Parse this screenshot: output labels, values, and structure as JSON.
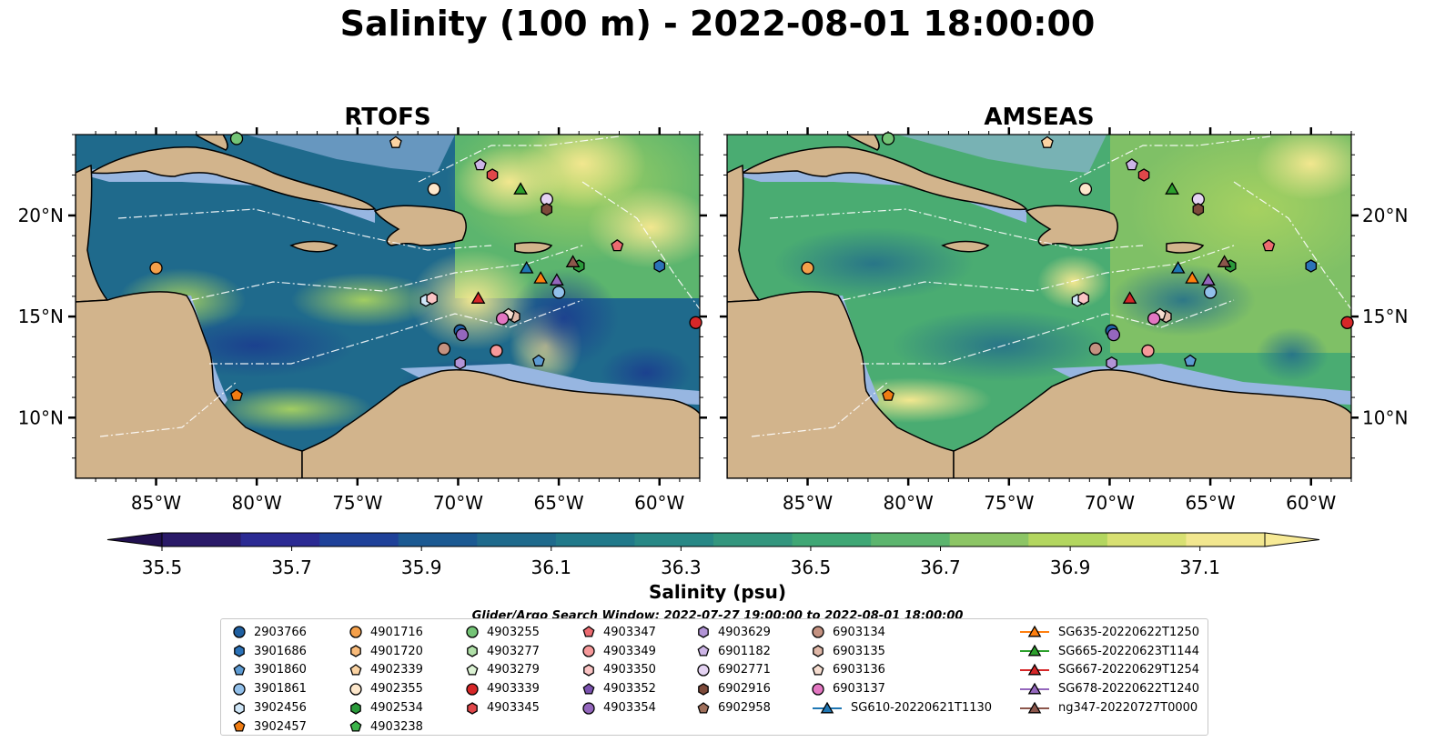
{
  "title": "Salinity (100 m) - 2022-08-01 18:00:00",
  "panels": [
    {
      "title": "RTOFS"
    },
    {
      "title": "AMSEAS"
    }
  ],
  "axes": {
    "x_ticks": [
      "85°W",
      "80°W",
      "75°W",
      "70°W",
      "65°W",
      "60°W"
    ],
    "y_ticks": [
      "20°N",
      "15°N",
      "10°N"
    ],
    "x_range_deg": [
      -89,
      -58
    ],
    "y_range_deg": [
      7,
      24
    ]
  },
  "colorbar": {
    "label": "Salinity (psu)",
    "tick_labels": [
      "35.5",
      "35.7",
      "35.9",
      "36.1",
      "36.3",
      "36.5",
      "36.7",
      "36.9",
      "37.1"
    ],
    "range": [
      35.5,
      37.2
    ],
    "extend": "both",
    "colors": [
      "#2a1a68",
      "#2b2a93",
      "#1f4199",
      "#1b5992",
      "#1f6a8c",
      "#21798a",
      "#288886",
      "#33967e",
      "#3fa775",
      "#5cb56e",
      "#8cc565",
      "#b3d65f",
      "#d8e072",
      "#f2e78f"
    ]
  },
  "search_window": "Glider/Argo Search Window: 2022-07-27 19:00:00 to 2022-08-01 18:00:00",
  "colors": {
    "land": "#d2b48c",
    "shelf": "#97b6e1"
  },
  "legend": {
    "columns": [
      [
        {
          "label": "2903766",
          "marker": "circle",
          "color": "#1f5fa0"
        },
        {
          "label": "3901686",
          "marker": "hexagon",
          "color": "#2b72b8"
        },
        {
          "label": "3901860",
          "marker": "pentagon",
          "color": "#5d9bd3"
        },
        {
          "label": "3901861",
          "marker": "circle",
          "color": "#92c0ea"
        },
        {
          "label": "3902456",
          "marker": "hexagon",
          "color": "#cfe6f7"
        },
        {
          "label": "3902457",
          "marker": "pentagon",
          "color": "#f07c12"
        }
      ],
      [
        {
          "label": "4901716",
          "marker": "circle",
          "color": "#f5a04a"
        },
        {
          "label": "4901720",
          "marker": "hexagon",
          "color": "#f9bb7a"
        },
        {
          "label": "4902339",
          "marker": "pentagon",
          "color": "#fbd3a2"
        },
        {
          "label": "4902355",
          "marker": "circle",
          "color": "#fde7cb"
        },
        {
          "label": "4902534",
          "marker": "hexagon",
          "color": "#2a9a3a"
        },
        {
          "label": "4903238",
          "marker": "pentagon",
          "color": "#3cb34a"
        }
      ],
      [
        {
          "label": "4903255",
          "marker": "circle",
          "color": "#74c476"
        },
        {
          "label": "4903277",
          "marker": "hexagon",
          "color": "#b0e0a8"
        },
        {
          "label": "4903279",
          "marker": "pentagon",
          "color": "#dcf3d4"
        },
        {
          "label": "4903339",
          "marker": "circle",
          "color": "#d62728"
        },
        {
          "label": "4903345",
          "marker": "hexagon",
          "color": "#e0474a"
        }
      ],
      [
        {
          "label": "4903347",
          "marker": "pentagon",
          "color": "#ec6b70"
        },
        {
          "label": "4903349",
          "marker": "circle",
          "color": "#f6999a"
        },
        {
          "label": "4903350",
          "marker": "hexagon",
          "color": "#fbc4c4"
        },
        {
          "label": "4903352",
          "marker": "pentagon",
          "color": "#7b52b0"
        },
        {
          "label": "4903354",
          "marker": "circle",
          "color": "#9467bd"
        }
      ],
      [
        {
          "label": "4903629",
          "marker": "hexagon",
          "color": "#b294d6"
        },
        {
          "label": "6901182",
          "marker": "pentagon",
          "color": "#cdb5e6"
        },
        {
          "label": "6902771",
          "marker": "circle",
          "color": "#e4d3f2"
        },
        {
          "label": "6902916",
          "marker": "hexagon",
          "color": "#7d4a3a"
        },
        {
          "label": "6902958",
          "marker": "pentagon",
          "color": "#a0705c"
        }
      ],
      [
        {
          "label": "6903134",
          "marker": "circle",
          "color": "#c49281"
        },
        {
          "label": "6903135",
          "marker": "hexagon",
          "color": "#e0b8a8"
        },
        {
          "label": "6903136",
          "marker": "pentagon",
          "color": "#f6ddd0"
        },
        {
          "label": "6903137",
          "marker": "circle",
          "color": "#e377c2"
        },
        {
          "label": "SG610-20220621T1130",
          "marker": "triangle-line",
          "color": "#1f77b4"
        }
      ],
      [
        {
          "label": "SG635-20220622T1250",
          "marker": "triangle-line",
          "color": "#ff7f0e"
        },
        {
          "label": "SG665-20220623T1144",
          "marker": "triangle-line",
          "color": "#2ca02c"
        },
        {
          "label": "SG667-20220629T1254",
          "marker": "triangle-line",
          "color": "#d62728"
        },
        {
          "label": "SG678-20220622T1240",
          "marker": "triangle-line",
          "color": "#9467bd"
        },
        {
          "label": "ng347-20220727T0000",
          "marker": "triangle-line",
          "color": "#8c564b"
        }
      ]
    ]
  },
  "platforms": [
    {
      "id": "2903766",
      "marker": "circle",
      "color": "#1f5fa0",
      "lon": -69.9,
      "lat": 14.3
    },
    {
      "id": "3901686",
      "marker": "hexagon",
      "color": "#2b72b8",
      "lon": -60.0,
      "lat": 17.5
    },
    {
      "id": "3901860",
      "marker": "pentagon",
      "color": "#5d9bd3",
      "lon": -66.0,
      "lat": 12.8
    },
    {
      "id": "3901861",
      "marker": "circle",
      "color": "#92c0ea",
      "lon": -65.0,
      "lat": 16.2
    },
    {
      "id": "3902456",
      "marker": "hexagon",
      "color": "#cfe6f7",
      "lon": -71.6,
      "lat": 15.8
    },
    {
      "id": "3902457",
      "marker": "pentagon",
      "color": "#f07c12",
      "lon": -81.0,
      "lat": 11.1
    },
    {
      "id": "4901716",
      "marker": "circle",
      "color": "#f5a04a",
      "lon": -85.0,
      "lat": 17.4
    },
    {
      "id": "4902339",
      "marker": "pentagon",
      "color": "#fbd3a2",
      "lon": -73.1,
      "lat": 23.6
    },
    {
      "id": "4902355",
      "marker": "circle",
      "color": "#fde7cb",
      "lon": -71.2,
      "lat": 21.3
    },
    {
      "id": "4903255",
      "marker": "circle",
      "color": "#74c476",
      "lon": -81.0,
      "lat": 23.8
    },
    {
      "id": "4903339",
      "marker": "circle",
      "color": "#d62728",
      "lon": -58.2,
      "lat": 14.7
    },
    {
      "id": "4903345",
      "marker": "hexagon",
      "color": "#e0474a",
      "lon": -68.3,
      "lat": 22.0
    },
    {
      "id": "4903347",
      "marker": "pentagon",
      "color": "#ec6b70",
      "lon": -62.1,
      "lat": 18.5
    },
    {
      "id": "4903349",
      "marker": "circle",
      "color": "#f6999a",
      "lon": -68.1,
      "lat": 13.3
    },
    {
      "id": "4903350",
      "marker": "hexagon",
      "color": "#fbc4c4",
      "lon": -71.3,
      "lat": 15.9
    },
    {
      "id": "4903354",
      "marker": "circle",
      "color": "#9467bd",
      "lon": -69.8,
      "lat": 14.1
    },
    {
      "id": "4903629",
      "marker": "hexagon",
      "color": "#b294d6",
      "lon": -69.9,
      "lat": 12.7
    },
    {
      "id": "6901182",
      "marker": "pentagon",
      "color": "#cdb5e6",
      "lon": -68.9,
      "lat": 22.5
    },
    {
      "id": "6902771",
      "marker": "circle",
      "color": "#e4d3f2",
      "lon": -65.6,
      "lat": 20.8
    },
    {
      "id": "6902916",
      "marker": "hexagon",
      "color": "#7d4a3a",
      "lon": -65.6,
      "lat": 20.3
    },
    {
      "id": "6903134",
      "marker": "circle",
      "color": "#c49281",
      "lon": -70.7,
      "lat": 13.4
    },
    {
      "id": "6903135",
      "marker": "hexagon",
      "color": "#e0b8a8",
      "lon": -67.2,
      "lat": 15.0
    },
    {
      "id": "6903136",
      "marker": "pentagon",
      "color": "#f6ddd0",
      "lon": -67.5,
      "lat": 15.1
    },
    {
      "id": "6903137",
      "marker": "circle",
      "color": "#e377c2",
      "lon": -67.8,
      "lat": 14.9
    },
    {
      "id": "4902534",
      "marker": "hexagon",
      "color": "#2a9a3a",
      "lon": -64.0,
      "lat": 17.5
    },
    {
      "id": "SG610-20220621T1130",
      "marker": "triangle",
      "color": "#1f77b4",
      "lon": -66.6,
      "lat": 17.4
    },
    {
      "id": "SG635-20220622T1250",
      "marker": "triangle",
      "color": "#ff7f0e",
      "lon": -65.9,
      "lat": 16.9
    },
    {
      "id": "SG665-20220623T1144",
      "marker": "triangle",
      "color": "#2ca02c",
      "lon": -66.9,
      "lat": 21.3
    },
    {
      "id": "SG667-20220629T1254",
      "marker": "triangle",
      "color": "#d62728",
      "lon": -69.0,
      "lat": 15.9
    },
    {
      "id": "SG678-20220622T1240",
      "marker": "triangle",
      "color": "#9467bd",
      "lon": -65.1,
      "lat": 16.8
    },
    {
      "id": "ng347-20220727T0000",
      "marker": "triangle",
      "color": "#8c564b",
      "lon": -64.3,
      "lat": 17.7
    }
  ]
}
